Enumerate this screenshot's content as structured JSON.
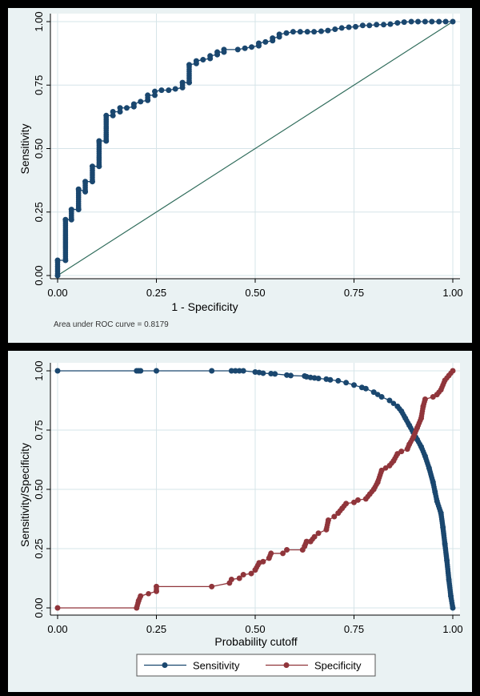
{
  "colors": {
    "sensitivity": "#1a476f",
    "specificity": "#90353b",
    "reference": "#2e6b5a",
    "background": "#eaf2f3",
    "grid": "#d6e4e8"
  },
  "chart_data": [
    {
      "type": "line",
      "xlabel": "1 - Specificity",
      "ylabel": "Sensitivity",
      "xlim": [
        0,
        1
      ],
      "ylim": [
        0,
        1
      ],
      "xticks": [
        "0.00",
        "0.25",
        "0.50",
        "0.75",
        "1.00"
      ],
      "yticks": [
        "0.00",
        "0.25",
        "0.50",
        "0.75",
        "1.00"
      ],
      "grid": true,
      "note": "Area under ROC curve = 0.8179",
      "reference_line": [
        [
          0,
          0
        ],
        [
          1,
          1
        ]
      ],
      "series": [
        {
          "x": [
            0,
            0,
            0.02,
            0.02,
            0.035,
            0.035,
            0.053,
            0.053,
            0.07,
            0.07,
            0.088,
            0.088,
            0.105,
            0.105,
            0.123,
            0.123,
            0.14,
            0.14,
            0.158,
            0.158,
            0.175,
            0.193,
            0.193,
            0.21,
            0.228,
            0.228,
            0.246,
            0.246,
            0.263,
            0.281,
            0.298,
            0.316,
            0.316,
            0.333,
            0.333,
            0.351,
            0.351,
            0.368,
            0.386,
            0.386,
            0.404,
            0.404,
            0.421,
            0.421,
            0.456,
            0.474,
            0.491,
            0.509,
            0.509,
            0.526,
            0.544,
            0.544,
            0.561,
            0.561,
            0.579,
            0.596,
            0.614,
            0.632,
            0.649,
            0.667,
            0.684,
            0.702,
            0.719,
            0.737,
            0.754,
            0.772,
            0.789,
            0.807,
            0.825,
            0.842,
            0.86,
            0.877,
            0.895,
            0.912,
            0.93,
            0.947,
            0.965,
            0.982,
            1
          ],
          "y": [
            0,
            0.06,
            0.06,
            0.22,
            0.22,
            0.26,
            0.26,
            0.34,
            0.33,
            0.37,
            0.37,
            0.43,
            0.43,
            0.53,
            0.53,
            0.63,
            0.63,
            0.645,
            0.645,
            0.66,
            0.66,
            0.665,
            0.675,
            0.685,
            0.69,
            0.71,
            0.71,
            0.725,
            0.73,
            0.73,
            0.735,
            0.74,
            0.76,
            0.76,
            0.83,
            0.835,
            0.845,
            0.85,
            0.855,
            0.865,
            0.87,
            0.88,
            0.88,
            0.89,
            0.89,
            0.895,
            0.9,
            0.905,
            0.915,
            0.92,
            0.925,
            0.935,
            0.94,
            0.95,
            0.955,
            0.96,
            0.96,
            0.96,
            0.96,
            0.962,
            0.965,
            0.97,
            0.975,
            0.978,
            0.98,
            0.985,
            0.985,
            0.988,
            0.988,
            0.99,
            0.995,
            0.998,
            1,
            1,
            1,
            1,
            1,
            1,
            1
          ]
        }
      ]
    },
    {
      "type": "line",
      "xlabel": "Probability cutoff",
      "ylabel": "Sensitivity/Specificity",
      "xlim": [
        0,
        1
      ],
      "ylim": [
        0,
        1
      ],
      "xticks": [
        "0.00",
        "0.25",
        "0.50",
        "0.75",
        "1.00"
      ],
      "yticks": [
        "0.00",
        "0.25",
        "0.50",
        "0.75",
        "1.00"
      ],
      "grid": true,
      "legend": "bottom",
      "series": [
        {
          "name": "Sensitivity",
          "x": [
            0,
            0.2,
            0.205,
            0.21,
            0.25,
            0.39,
            0.44,
            0.45,
            0.46,
            0.47,
            0.5,
            0.51,
            0.52,
            0.54,
            0.55,
            0.58,
            0.59,
            0.625,
            0.63,
            0.64,
            0.65,
            0.66,
            0.68,
            0.69,
            0.71,
            0.73,
            0.75,
            0.77,
            0.78,
            0.8,
            0.82,
            0.84,
            0.86,
            0.87,
            0.88,
            0.89,
            0.9,
            0.91,
            0.92,
            0.93,
            0.94,
            0.95,
            0.955,
            0.96,
            0.97,
            0.975,
            0.98,
            0.985,
            0.99,
            0.995,
            1
          ],
          "y": [
            1,
            1,
            1,
            1,
            1,
            1,
            1,
            1,
            1,
            1,
            0.995,
            0.993,
            0.99,
            0.988,
            0.987,
            0.982,
            0.98,
            0.978,
            0.975,
            0.972,
            0.97,
            0.968,
            0.965,
            0.962,
            0.958,
            0.95,
            0.94,
            0.93,
            0.925,
            0.91,
            0.89,
            0.875,
            0.85,
            0.83,
            0.8,
            0.77,
            0.74,
            0.71,
            0.68,
            0.64,
            0.59,
            0.53,
            0.49,
            0.45,
            0.4,
            0.34,
            0.27,
            0.2,
            0.12,
            0.05,
            0
          ]
        },
        {
          "name": "Specificity",
          "x": [
            0,
            0.2,
            0.205,
            0.21,
            0.25,
            0.25,
            0.39,
            0.435,
            0.44,
            0.46,
            0.47,
            0.49,
            0.5,
            0.51,
            0.52,
            0.535,
            0.54,
            0.57,
            0.58,
            0.62,
            0.625,
            0.63,
            0.64,
            0.65,
            0.66,
            0.68,
            0.685,
            0.7,
            0.71,
            0.72,
            0.73,
            0.75,
            0.76,
            0.78,
            0.79,
            0.8,
            0.81,
            0.82,
            0.84,
            0.85,
            0.86,
            0.87,
            0.885,
            0.89,
            0.9,
            0.91,
            0.92,
            0.925,
            0.93,
            0.95,
            0.96,
            0.97,
            0.98,
            0.99,
            1
          ],
          "y": [
            0,
            0,
            0.03,
            0.05,
            0.07,
            0.09,
            0.09,
            0.105,
            0.12,
            0.125,
            0.14,
            0.145,
            0.16,
            0.19,
            0.195,
            0.21,
            0.23,
            0.23,
            0.245,
            0.245,
            0.26,
            0.28,
            0.28,
            0.3,
            0.315,
            0.33,
            0.37,
            0.385,
            0.4,
            0.42,
            0.44,
            0.445,
            0.455,
            0.46,
            0.48,
            0.5,
            0.53,
            0.58,
            0.6,
            0.62,
            0.65,
            0.66,
            0.67,
            0.69,
            0.72,
            0.76,
            0.8,
            0.85,
            0.88,
            0.89,
            0.9,
            0.92,
            0.96,
            0.98,
            1
          ]
        }
      ]
    }
  ]
}
